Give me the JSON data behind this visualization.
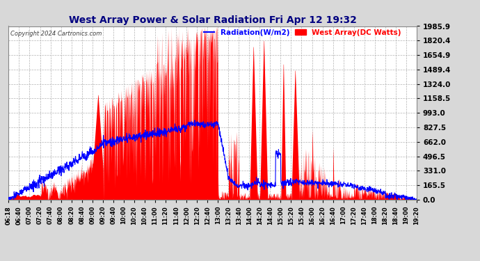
{
  "title": "West Array Power & Solar Radiation Fri Apr 12 19:32",
  "copyright": "Copyright 2024 Cartronics.com",
  "legend_radiation": "Radiation(W/m2)",
  "legend_west_array": "West Array(DC Watts)",
  "yticks": [
    0.0,
    165.5,
    331.0,
    496.5,
    662.0,
    827.5,
    993.0,
    1158.5,
    1324.0,
    1489.4,
    1654.9,
    1820.4,
    1985.9
  ],
  "ymax": 1985.9,
  "ymin": 0.0,
  "bg_color": "#d8d8d8",
  "plot_bg_color": "#ffffff",
  "grid_color": "#aaaaaa",
  "red_color": "#ff0000",
  "blue_color": "#0000ff",
  "title_color": "#000080",
  "copyright_color": "#404040",
  "xtick_labels": [
    "06:18",
    "06:40",
    "07:00",
    "07:20",
    "07:40",
    "08:00",
    "08:20",
    "08:40",
    "09:00",
    "09:20",
    "09:40",
    "10:00",
    "10:20",
    "10:40",
    "11:00",
    "11:20",
    "11:40",
    "12:00",
    "12:20",
    "12:40",
    "13:00",
    "13:20",
    "13:40",
    "14:00",
    "14:20",
    "14:40",
    "15:00",
    "15:20",
    "15:40",
    "16:00",
    "16:20",
    "16:40",
    "17:00",
    "17:20",
    "17:40",
    "18:00",
    "18:20",
    "18:40",
    "19:00",
    "19:20"
  ]
}
